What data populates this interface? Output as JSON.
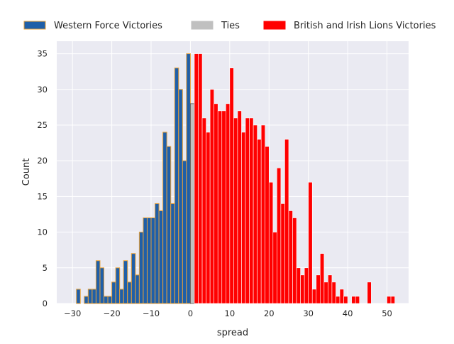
{
  "chart_data": {
    "type": "bar",
    "xlabel": "spread",
    "ylabel": "Count",
    "xlim": [
      -34,
      55.5
    ],
    "ylim": [
      0,
      36.75
    ],
    "x_ticks": [
      -30,
      -20,
      -10,
      0,
      10,
      20,
      30,
      40,
      50
    ],
    "y_ticks": [
      0,
      5,
      10,
      15,
      20,
      25,
      30,
      35
    ],
    "grid": true,
    "legend_position": "top, outside plot, horizontal",
    "colors": {
      "background": "#eaeaf2",
      "grid": "#ffffff",
      "western": "#1f5fa8",
      "western_edge": "#e8a13a",
      "ties": "#c0c0c0",
      "ties_edge": "#555555",
      "lions": "#ff0000"
    },
    "series": [
      {
        "name": "Western Force Victories",
        "key": "western",
        "x": [
          -29,
          -28,
          -27,
          -26,
          -25,
          -24,
          -23,
          -22,
          -21,
          -20,
          -19,
          -18,
          -17,
          -16,
          -15,
          -14,
          -13,
          -12,
          -11,
          -10,
          -9,
          -8,
          -7,
          -6,
          -5,
          -4,
          -3,
          -2,
          -1
        ],
        "values": [
          2,
          0,
          1,
          2,
          2,
          6,
          5,
          1,
          1,
          3,
          5,
          2,
          6,
          3,
          7,
          4,
          10,
          12,
          12,
          12,
          14,
          13,
          24,
          22,
          14,
          33,
          30,
          20,
          35
        ]
      },
      {
        "name": "Ties",
        "key": "ties",
        "x": [
          0
        ],
        "values": [
          28
        ]
      },
      {
        "name": "British and Irish Lions Victories",
        "key": "lions",
        "x": [
          1,
          2,
          3,
          4,
          5,
          6,
          7,
          8,
          9,
          10,
          11,
          12,
          13,
          14,
          15,
          16,
          17,
          18,
          19,
          20,
          21,
          22,
          23,
          24,
          25,
          26,
          27,
          28,
          29,
          30,
          31,
          32,
          33,
          34,
          35,
          36,
          37,
          38,
          39,
          40,
          41,
          42,
          43,
          44,
          45,
          46,
          47,
          48,
          49,
          50,
          51
        ],
        "values": [
          35,
          35,
          26,
          24,
          30,
          28,
          27,
          27,
          28,
          33,
          26,
          27,
          24,
          26,
          26,
          25,
          23,
          25,
          22,
          17,
          10,
          19,
          14,
          23,
          13,
          12,
          5,
          4,
          5,
          17,
          2,
          4,
          7,
          3,
          4,
          3,
          1,
          2,
          1,
          0,
          1,
          1,
          0,
          0,
          3,
          0,
          0,
          0,
          0,
          1,
          1
        ]
      }
    ]
  }
}
